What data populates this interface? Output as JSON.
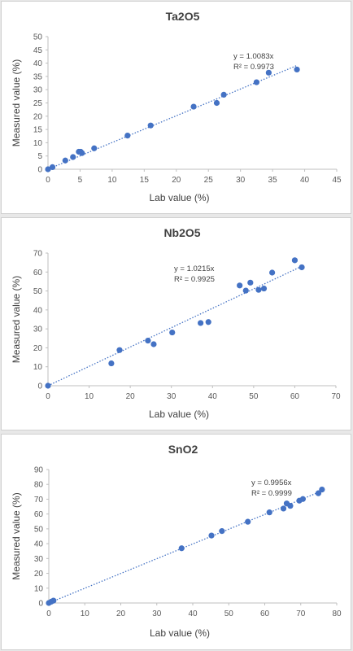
{
  "chart_data": [
    {
      "type": "scatter",
      "title": "Ta2O5",
      "xlabel": "Lab value (%)",
      "ylabel": "Measured value (%)",
      "xlim": [
        0,
        45
      ],
      "ylim": [
        0,
        50
      ],
      "xticks": [
        0,
        5,
        10,
        15,
        20,
        25,
        30,
        35,
        40,
        45
      ],
      "yticks": [
        0,
        5,
        10,
        15,
        20,
        25,
        30,
        35,
        40,
        45,
        50
      ],
      "grid": false,
      "trendline": {
        "type": "linear",
        "slope": 1.0083,
        "intercept": 0,
        "equation": "y = 1.0083x",
        "r2": "R² = 0.9973"
      },
      "points": [
        {
          "x": 0,
          "y": 0
        },
        {
          "x": 0.7,
          "y": 0.8
        },
        {
          "x": 2.7,
          "y": 3.3
        },
        {
          "x": 3.9,
          "y": 4.6
        },
        {
          "x": 4.8,
          "y": 6.6
        },
        {
          "x": 5.1,
          "y": 6.6
        },
        {
          "x": 5.3,
          "y": 6.1
        },
        {
          "x": 7.2,
          "y": 7.9
        },
        {
          "x": 12.4,
          "y": 12.7
        },
        {
          "x": 16,
          "y": 16.5
        },
        {
          "x": 22.7,
          "y": 23.6
        },
        {
          "x": 26.3,
          "y": 25
        },
        {
          "x": 27.4,
          "y": 28.1
        },
        {
          "x": 32.5,
          "y": 32.8
        },
        {
          "x": 34.4,
          "y": 36.4
        },
        {
          "x": 38.8,
          "y": 37.6
        }
      ]
    },
    {
      "type": "scatter",
      "title": "Nb2O5",
      "xlabel": "Lab value (%)",
      "ylabel": "Measured value (%)",
      "xlim": [
        0,
        70
      ],
      "ylim": [
        0,
        70
      ],
      "xticks": [
        0,
        10,
        20,
        30,
        40,
        50,
        60,
        70
      ],
      "yticks": [
        0,
        10,
        20,
        30,
        40,
        50,
        60,
        70
      ],
      "grid": false,
      "trendline": {
        "type": "linear",
        "slope": 1.0215,
        "intercept": 0,
        "equation": "y = 1.0215x",
        "r2": "R² = 0.9925"
      },
      "points": [
        {
          "x": 0,
          "y": 0
        },
        {
          "x": 15.4,
          "y": 11.8
        },
        {
          "x": 17.4,
          "y": 18.8
        },
        {
          "x": 24.3,
          "y": 23.8
        },
        {
          "x": 25.7,
          "y": 21.9
        },
        {
          "x": 30.2,
          "y": 28.1
        },
        {
          "x": 37.1,
          "y": 33.1
        },
        {
          "x": 39,
          "y": 33.6
        },
        {
          "x": 46.6,
          "y": 52.9
        },
        {
          "x": 48.1,
          "y": 50.2
        },
        {
          "x": 49.2,
          "y": 54.4
        },
        {
          "x": 51.2,
          "y": 50.6
        },
        {
          "x": 52.5,
          "y": 51.3
        },
        {
          "x": 54.5,
          "y": 59.7
        },
        {
          "x": 60,
          "y": 66.2
        },
        {
          "x": 61.7,
          "y": 62.5
        }
      ]
    },
    {
      "type": "scatter",
      "title": "SnO2",
      "xlabel": "Lab value (%)",
      "ylabel": "Measured value (%)",
      "xlim": [
        0,
        80
      ],
      "ylim": [
        0,
        90
      ],
      "xticks": [
        0,
        10,
        20,
        30,
        40,
        50,
        60,
        70,
        80
      ],
      "yticks": [
        0,
        10,
        20,
        30,
        40,
        50,
        60,
        70,
        80,
        90
      ],
      "grid": false,
      "trendline": {
        "type": "linear",
        "slope": 0.9956,
        "intercept": 0,
        "equation": "y = 0.9956x",
        "r2": "R² = 0.9999"
      },
      "points": [
        {
          "x": 0,
          "y": 0
        },
        {
          "x": 0.7,
          "y": 0.9
        },
        {
          "x": 1.3,
          "y": 1.6
        },
        {
          "x": 36.9,
          "y": 36.9
        },
        {
          "x": 45.2,
          "y": 45.5
        },
        {
          "x": 48.1,
          "y": 48.5
        },
        {
          "x": 55.3,
          "y": 54.8
        },
        {
          "x": 61.3,
          "y": 61.1
        },
        {
          "x": 65.2,
          "y": 63.7
        },
        {
          "x": 66.1,
          "y": 67.1
        },
        {
          "x": 67.1,
          "y": 65.5
        },
        {
          "x": 69.6,
          "y": 69
        },
        {
          "x": 70.6,
          "y": 70.1
        },
        {
          "x": 74.9,
          "y": 74
        },
        {
          "x": 75.9,
          "y": 76.5
        }
      ]
    }
  ],
  "colors": {
    "marker": "#4472c4",
    "trendline": "#4472c4",
    "axis": "#bfbfbf",
    "text": "#595959"
  }
}
